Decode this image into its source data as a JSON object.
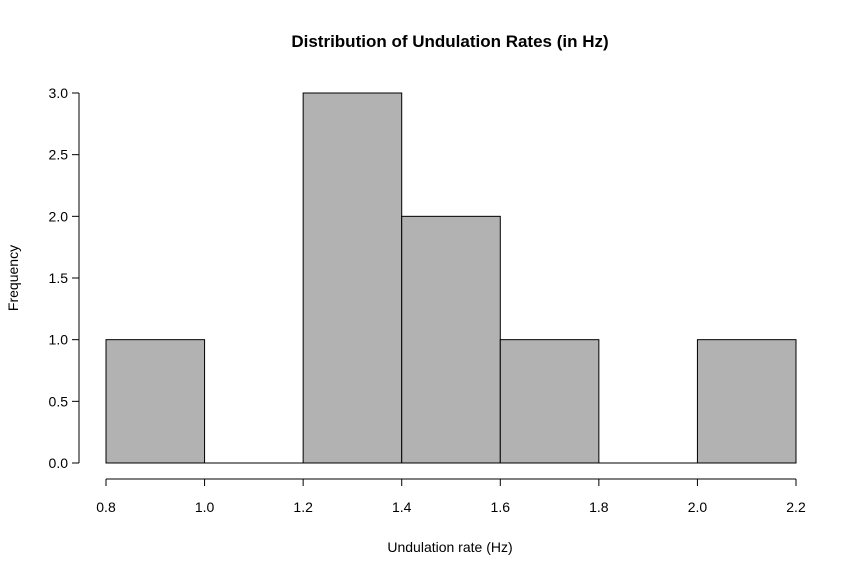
{
  "chart_data": {
    "type": "bar",
    "title": "Distribution of Undulation Rates (in Hz)",
    "xlabel": "Undulation rate (Hz)",
    "ylabel": "Frequency",
    "bins": [
      {
        "start": 0.8,
        "end": 1.0,
        "count": 1
      },
      {
        "start": 1.0,
        "end": 1.2,
        "count": 0
      },
      {
        "start": 1.2,
        "end": 1.4,
        "count": 3
      },
      {
        "start": 1.4,
        "end": 1.6,
        "count": 2
      },
      {
        "start": 1.6,
        "end": 1.8,
        "count": 1
      },
      {
        "start": 1.8,
        "end": 2.0,
        "count": 0
      },
      {
        "start": 2.0,
        "end": 2.2,
        "count": 1
      }
    ],
    "xlim": [
      0.8,
      2.2
    ],
    "ylim": [
      0,
      3
    ],
    "x_ticks": [
      "0.8",
      "1.0",
      "1.2",
      "1.4",
      "1.6",
      "1.8",
      "2.0",
      "2.2"
    ],
    "y_ticks": [
      "0.0",
      "0.5",
      "1.0",
      "1.5",
      "2.0",
      "2.5",
      "3.0"
    ],
    "bar_color": "#b2b2b2",
    "edge_color": "#000000",
    "grid": false
  }
}
